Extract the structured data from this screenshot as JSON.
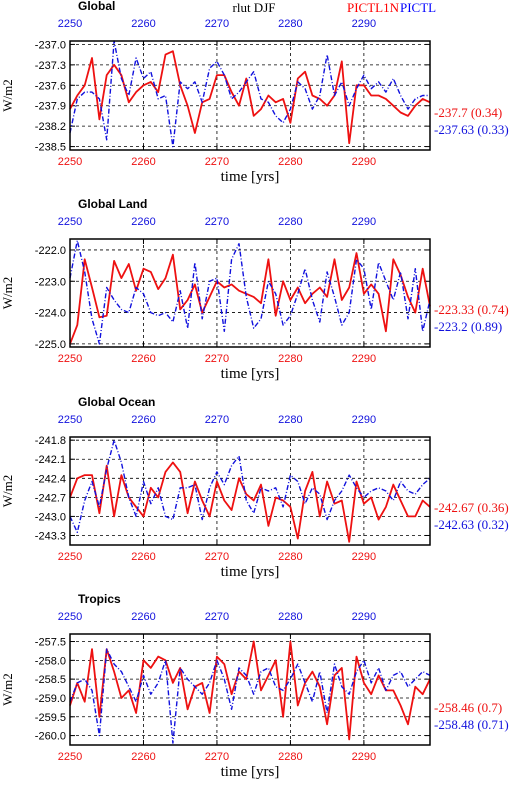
{
  "figure": {
    "variable_label": "rlut  DJF",
    "legend": [
      {
        "name": "PICTL1N",
        "color": "#ff0000"
      },
      {
        "name": "PICTL",
        "color": "#0000ff"
      }
    ]
  },
  "colors": {
    "series1": "#ee1111",
    "series2": "#1111dd",
    "bottom_ticks": "#ee1111",
    "top_ticks": "#1111dd"
  },
  "chart_data": [
    {
      "type": "line",
      "title": "Global",
      "xlabel": "time [yrs]",
      "ylabel": "W/m2",
      "xlim": [
        2250,
        2299
      ],
      "ylim": [
        -238.55,
        -236.95
      ],
      "xticks": [
        "2250",
        "2260",
        "2270",
        "2280",
        "2290"
      ],
      "top_ticks": [
        "2250",
        "2260",
        "2270",
        "2280",
        "2290"
      ],
      "yticks": [
        -237.0,
        -237.3,
        -237.6,
        -237.9,
        -238.2,
        -238.5
      ],
      "ytick_labels": [
        "-237.0",
        "-237.3",
        "-237.6",
        "-237.9",
        "-238.2",
        "-238.5"
      ],
      "grid": true,
      "series": [
        {
          "mean_label": "-237.7 (0.34)",
          "values": [
            -237.95,
            -237.75,
            -237.6,
            -237.2,
            -238.1,
            -237.45,
            -237.3,
            -237.45,
            -237.85,
            -237.7,
            -237.6,
            -237.55,
            -237.7,
            -237.15,
            -237.1,
            -237.6,
            -237.9,
            -238.3,
            -237.85,
            -237.8,
            -237.45,
            -237.45,
            -237.7,
            -237.9,
            -237.5,
            -238.05,
            -237.95,
            -237.75,
            -237.85,
            -237.8,
            -238.15,
            -237.5,
            -237.4,
            -237.75,
            -237.8,
            -237.9,
            -237.75,
            -237.25,
            -238.45,
            -237.6,
            -237.6,
            -237.75,
            -237.75,
            -237.8,
            -237.9,
            -238.0,
            -238.05,
            -237.9,
            -237.8,
            -237.85
          ]
        },
        {
          "mean_label": "-237.63 (0.33)",
          "values": [
            -238.3,
            -237.8,
            -237.7,
            -237.7,
            -237.8,
            -238.4,
            -236.95,
            -237.5,
            -237.75,
            -237.2,
            -237.5,
            -237.4,
            -237.8,
            -237.75,
            -238.5,
            -237.55,
            -237.65,
            -237.55,
            -237.85,
            -237.35,
            -237.25,
            -237.45,
            -237.8,
            -237.7,
            -237.55,
            -237.4,
            -237.8,
            -237.85,
            -238.05,
            -238.15,
            -237.95,
            -237.55,
            -237.65,
            -237.95,
            -237.75,
            -237.15,
            -237.75,
            -237.55,
            -237.9,
            -237.65,
            -237.45,
            -237.65,
            -237.55,
            -237.7,
            -237.5,
            -237.75,
            -237.95,
            -237.8,
            -237.75,
            -237.75
          ]
        }
      ]
    },
    {
      "type": "line",
      "title": "Global Land",
      "xlabel": "time [yrs]",
      "ylabel": "W/m2",
      "xlim": [
        2250,
        2299
      ],
      "ylim": [
        -225.1,
        -221.65
      ],
      "xticks": [
        "2250",
        "2260",
        "2270",
        "2280",
        "2290"
      ],
      "top_ticks": [
        "2250",
        "2260",
        "2270",
        "2280",
        "2290"
      ],
      "yticks": [
        -222.0,
        -223.0,
        -224.0,
        -225.0
      ],
      "ytick_labels": [
        "-222.0",
        "-223.0",
        "-224.0",
        "-225.0"
      ],
      "grid": true,
      "series": [
        {
          "mean_label": "-223.33 (0.74)",
          "values": [
            -225.0,
            -224.4,
            -222.3,
            -223.2,
            -224.15,
            -224.1,
            -222.35,
            -222.9,
            -222.45,
            -223.3,
            -222.6,
            -222.7,
            -223.25,
            -222.9,
            -222.15,
            -223.9,
            -223.6,
            -223.1,
            -224.0,
            -223.5,
            -223.0,
            -223.2,
            -223.1,
            -223.3,
            -223.4,
            -223.5,
            -223.7,
            -222.3,
            -224.1,
            -223.0,
            -223.6,
            -223.2,
            -223.7,
            -223.4,
            -223.2,
            -223.5,
            -222.3,
            -223.6,
            -223.2,
            -222.1,
            -223.4,
            -223.1,
            -223.4,
            -224.6,
            -222.3,
            -222.8,
            -223.5,
            -224.0,
            -222.6,
            -223.8
          ]
        },
        {
          "mean_label": "-223.2 (0.89)",
          "values": [
            -222.9,
            -221.7,
            -222.7,
            -224.2,
            -225.0,
            -223.2,
            -223.6,
            -223.9,
            -224.0,
            -223.2,
            -223.4,
            -224.0,
            -224.1,
            -224.0,
            -224.3,
            -223.3,
            -224.5,
            -222.4,
            -224.2,
            -223.0,
            -222.9,
            -224.6,
            -222.3,
            -221.8,
            -223.5,
            -224.5,
            -224.2,
            -223.0,
            -223.4,
            -224.4,
            -224.1,
            -223.4,
            -222.6,
            -223.6,
            -224.3,
            -222.7,
            -223.5,
            -224.4,
            -224.0,
            -222.3,
            -222.6,
            -223.9,
            -222.4,
            -223.0,
            -223.6,
            -222.7,
            -224.2,
            -222.6,
            -224.6,
            -223.6
          ]
        }
      ]
    },
    {
      "type": "line",
      "title": "Global Ocean",
      "xlabel": "time [yrs]",
      "ylabel": "W/m2",
      "xlim": [
        2250,
        2299
      ],
      "ylim": [
        -243.45,
        -241.75
      ],
      "xticks": [
        "2250",
        "2260",
        "2270",
        "2280",
        "2290"
      ],
      "top_ticks": [
        "2250",
        "2260",
        "2270",
        "2280",
        "2290"
      ],
      "yticks": [
        -241.8,
        -242.1,
        -242.4,
        -242.7,
        -243.0,
        -243.3
      ],
      "ytick_labels": [
        "-241.8",
        "-242.1",
        "-242.4",
        "-242.7",
        "-243.0",
        "-243.3"
      ],
      "grid": true,
      "series": [
        {
          "mean_label": "-242.67 (0.36)",
          "values": [
            -242.7,
            -242.4,
            -242.35,
            -242.35,
            -242.95,
            -242.2,
            -243.0,
            -242.35,
            -242.7,
            -242.85,
            -243.0,
            -242.55,
            -242.7,
            -242.3,
            -242.15,
            -242.3,
            -242.95,
            -242.45,
            -242.75,
            -243.0,
            -242.45,
            -242.75,
            -242.9,
            -242.4,
            -242.65,
            -242.75,
            -242.5,
            -243.15,
            -242.7,
            -242.75,
            -242.85,
            -243.35,
            -242.6,
            -242.3,
            -243.0,
            -242.45,
            -242.8,
            -242.75,
            -243.4,
            -242.45,
            -242.8,
            -242.7,
            -243.05,
            -242.85,
            -242.5,
            -242.75,
            -243.0,
            -243.0,
            -242.75,
            -242.85
          ]
        },
        {
          "mean_label": "-242.63 (0.32)",
          "values": [
            -243.0,
            -243.25,
            -242.75,
            -242.45,
            -242.85,
            -242.25,
            -241.8,
            -242.15,
            -242.7,
            -243.0,
            -242.45,
            -242.8,
            -242.55,
            -243.0,
            -243.05,
            -242.55,
            -242.55,
            -242.5,
            -243.05,
            -242.55,
            -242.3,
            -242.5,
            -242.2,
            -242.05,
            -242.75,
            -242.95,
            -242.55,
            -242.6,
            -242.55,
            -242.85,
            -242.35,
            -242.45,
            -242.8,
            -242.55,
            -242.65,
            -243.05,
            -242.75,
            -242.6,
            -242.35,
            -242.55,
            -242.7,
            -242.6,
            -242.55,
            -242.6,
            -242.75,
            -242.45,
            -242.6,
            -242.65,
            -242.5,
            -242.4
          ]
        }
      ]
    },
    {
      "type": "line",
      "title": "Tropics",
      "xlabel": "time [yrs]",
      "ylabel": "W/m2",
      "xlim": [
        2250,
        2299
      ],
      "ylim": [
        -260.25,
        -257.3
      ],
      "xticks": [
        "2250",
        "2260",
        "2270",
        "2280",
        "2290"
      ],
      "top_ticks": [
        "2250",
        "2260",
        "2270",
        "2280",
        "2290"
      ],
      "yticks": [
        -257.5,
        -258.0,
        -258.5,
        -259.0,
        -259.5,
        -260.0
      ],
      "ytick_labels": [
        "-257.5",
        "-258.0",
        "-258.5",
        "-259.0",
        "-259.5",
        "-260.0"
      ],
      "grid": true,
      "series": [
        {
          "mean_label": "-258.46 (0.7)",
          "values": [
            -259.2,
            -258.6,
            -259.1,
            -257.7,
            -259.5,
            -257.7,
            -258.3,
            -259.0,
            -258.8,
            -259.4,
            -258.0,
            -258.2,
            -257.9,
            -258.0,
            -258.6,
            -258.2,
            -259.3,
            -258.7,
            -258.6,
            -259.4,
            -257.9,
            -258.1,
            -258.9,
            -258.3,
            -258.5,
            -257.5,
            -258.8,
            -258.4,
            -258.0,
            -259.5,
            -257.5,
            -259.2,
            -258.6,
            -258.3,
            -258.7,
            -259.7,
            -258.4,
            -258.2,
            -260.1,
            -257.9,
            -258.6,
            -258.9,
            -258.4,
            -258.8,
            -258.8,
            -259.2,
            -259.7,
            -258.7,
            -258.9,
            -258.5
          ]
        },
        {
          "mean_label": "-258.48 (0.71)",
          "values": [
            -259.1,
            -258.6,
            -258.5,
            -258.8,
            -260.0,
            -257.7,
            -258.1,
            -258.3,
            -258.7,
            -259.1,
            -258.4,
            -258.9,
            -258.6,
            -258.0,
            -260.2,
            -258.2,
            -258.5,
            -258.7,
            -258.9,
            -258.6,
            -258.0,
            -258.5,
            -259.3,
            -258.2,
            -258.4,
            -258.9,
            -258.3,
            -258.2,
            -258.7,
            -258.8,
            -258.5,
            -258.1,
            -258.6,
            -259.1,
            -258.3,
            -259.4,
            -258.1,
            -258.7,
            -258.9,
            -258.3,
            -258.0,
            -258.6,
            -258.2,
            -258.8,
            -258.4,
            -258.3,
            -258.7,
            -258.5,
            -258.3,
            -258.4
          ]
        }
      ]
    }
  ]
}
